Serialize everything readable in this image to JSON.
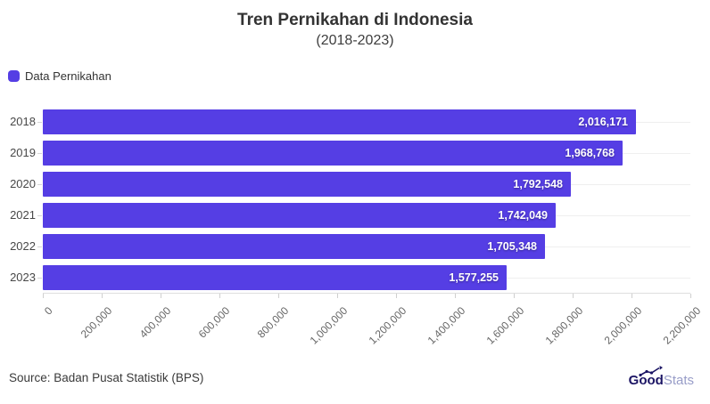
{
  "title": "Tren Pernikahan di Indonesia",
  "subtitle": "(2018-2023)",
  "legend": {
    "label": "Data Pernikahan",
    "color": "#553EE4"
  },
  "source": "Source: Badan Pusat Statistik (BPS)",
  "logo": {
    "bold": "Good",
    "light": "Stats"
  },
  "chart_data": {
    "type": "bar",
    "orientation": "horizontal",
    "title": "Tren Pernikahan di Indonesia",
    "subtitle": "(2018-2023)",
    "series_name": "Data Pernikahan",
    "categories": [
      "2018",
      "2019",
      "2020",
      "2021",
      "2022",
      "2023"
    ],
    "values": [
      2016171,
      1968768,
      1792548,
      1742049,
      1705348,
      1577255
    ],
    "value_labels": [
      "2,016,171",
      "1,968,768",
      "1,792,548",
      "1,742,049",
      "1,705,348",
      "1,577,255"
    ],
    "xlim": [
      0,
      2200000
    ],
    "x_ticks": [
      0,
      200000,
      400000,
      600000,
      800000,
      1000000,
      1200000,
      1400000,
      1600000,
      1800000,
      2000000,
      2200000
    ],
    "x_tick_labels": [
      "0",
      "200,000",
      "400,000",
      "600,000",
      "800,000",
      "1,000,000",
      "1,200,000",
      "1,400,000",
      "1,600,000",
      "1,800,000",
      "2,000,000",
      "2,200,000"
    ],
    "bar_color": "#553EE4",
    "grid": "horizontal-row-lines",
    "legend_position": "top-left"
  }
}
